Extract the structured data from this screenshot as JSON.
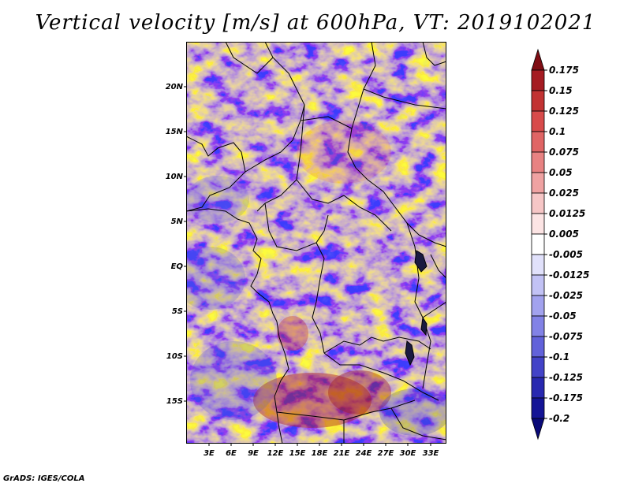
{
  "title": "Vertical velocity [m/s] at 600hPa, VT: 2019102021",
  "footer": "GrADS: IGES/COLA",
  "axes": {
    "lat_labels": [
      "20N",
      "15N",
      "10N",
      "5N",
      "EQ",
      "5S",
      "10S",
      "15S"
    ],
    "lon_labels": [
      "3E",
      "6E",
      "9E",
      "12E",
      "15E",
      "18E",
      "21E",
      "24E",
      "27E",
      "30E",
      "33E"
    ]
  },
  "colorbar": {
    "labels": [
      "0.175",
      "0.15",
      "0.125",
      "0.1",
      "0.075",
      "0.05",
      "0.025",
      "0.0125",
      "0.005",
      "-0.005",
      "-0.0125",
      "-0.025",
      "-0.05",
      "-0.075",
      "-0.1",
      "-0.125",
      "-0.175",
      "-0.2"
    ],
    "colors": [
      "#7f0d13",
      "#a51b22",
      "#c23333",
      "#d84b4b",
      "#e06565",
      "#e88282",
      "#efa2a2",
      "#f6c6c6",
      "#fce4e4",
      "#ffffff",
      "#e1e1fb",
      "#c2c2f5",
      "#a2a2ee",
      "#8282e6",
      "#6262da",
      "#4343c8",
      "#2828b0",
      "#141496",
      "#0a0a78"
    ]
  }
}
